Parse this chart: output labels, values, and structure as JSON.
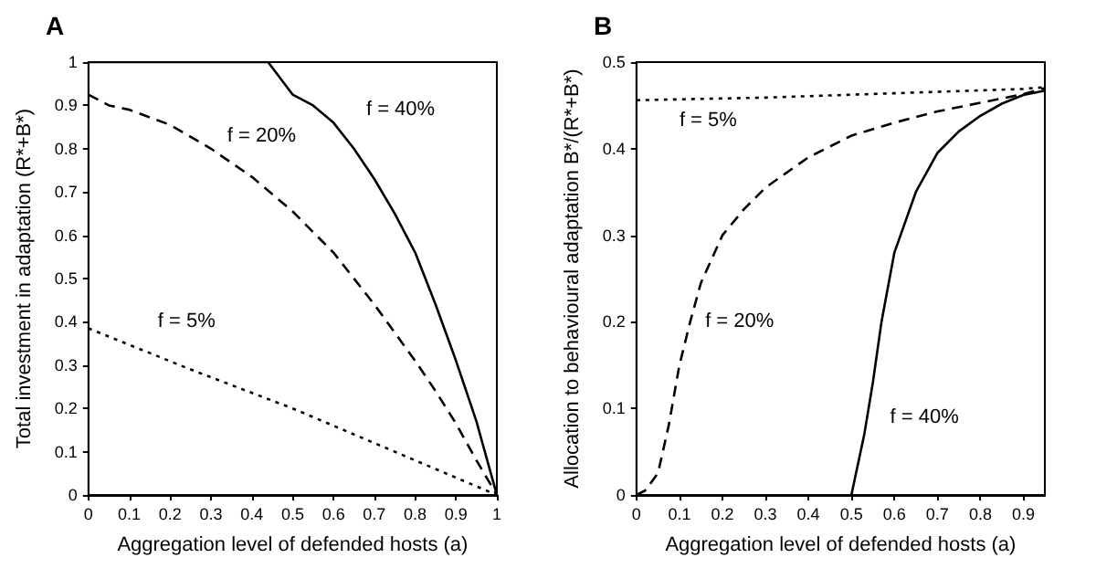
{
  "chart_data": [
    {
      "type": "line",
      "title": "A",
      "xlabel": "Aggregation level of defended hosts (a)",
      "ylabel": "Total investment in adaptation (R*+B*)",
      "xlim": [
        0,
        1
      ],
      "xticks": [
        0,
        0.1,
        0.2,
        0.3,
        0.4,
        0.5,
        0.6,
        0.7,
        0.8,
        0.9,
        1
      ],
      "ylim": [
        0,
        1
      ],
      "yticks": [
        0,
        0.1,
        0.2,
        0.3,
        0.4,
        0.5,
        0.6,
        0.7,
        0.8,
        0.9,
        1
      ],
      "grid": false,
      "legend": false,
      "series": [
        {
          "name": "f = 40%",
          "color": "#000000",
          "line_style": "solid",
          "x": [
            0,
            0.2,
            0.44,
            0.48,
            0.5,
            0.55,
            0.6,
            0.65,
            0.7,
            0.75,
            0.8,
            0.85,
            0.9,
            0.95,
            1
          ],
          "values": [
            1,
            1,
            1,
            0.95,
            0.925,
            0.9,
            0.86,
            0.8,
            0.73,
            0.65,
            0.56,
            0.44,
            0.31,
            0.17,
            0
          ]
        },
        {
          "name": "f = 20%",
          "color": "#000000",
          "line_style": "dashed",
          "x": [
            0,
            0.05,
            0.1,
            0.2,
            0.3,
            0.4,
            0.5,
            0.6,
            0.7,
            0.8,
            0.85,
            0.9,
            0.95,
            1
          ],
          "values": [
            0.925,
            0.9,
            0.89,
            0.855,
            0.8,
            0.735,
            0.655,
            0.56,
            0.44,
            0.31,
            0.24,
            0.165,
            0.08,
            0
          ]
        },
        {
          "name": "f = 5%",
          "color": "#000000",
          "line_style": "dotted",
          "x": [
            0,
            0.25,
            0.5,
            0.75,
            1
          ],
          "values": [
            0.385,
            0.29,
            0.2,
            0.1,
            0
          ]
        }
      ]
    },
    {
      "type": "line",
      "title": "B",
      "xlabel": "Aggregation level of defended hosts (a)",
      "ylabel": "Allocation to behavioural adaptation B*/(R*+B*)",
      "xlim": [
        0,
        0.95
      ],
      "xticks": [
        0,
        0.1,
        0.2,
        0.3,
        0.4,
        0.5,
        0.6,
        0.7,
        0.8,
        0.9
      ],
      "ylim": [
        0,
        0.5
      ],
      "yticks": [
        0,
        0.1,
        0.2,
        0.3,
        0.4,
        0.5
      ],
      "grid": false,
      "legend": false,
      "series": [
        {
          "name": "f = 5%",
          "color": "#000000",
          "line_style": "dotted",
          "x": [
            0,
            0.3,
            0.6,
            0.9,
            0.95
          ],
          "values": [
            0.456,
            0.459,
            0.464,
            0.469,
            0.471
          ]
        },
        {
          "name": "f = 20%",
          "color": "#000000",
          "line_style": "dashed",
          "x": [
            0,
            0.02,
            0.05,
            0.075,
            0.1,
            0.125,
            0.15,
            0.2,
            0.25,
            0.3,
            0.4,
            0.5,
            0.6,
            0.7,
            0.8,
            0.9,
            0.95
          ],
          "values": [
            0,
            0.005,
            0.025,
            0.08,
            0.15,
            0.2,
            0.245,
            0.3,
            0.33,
            0.355,
            0.39,
            0.415,
            0.43,
            0.443,
            0.453,
            0.463,
            0.47
          ]
        },
        {
          "name": "f = 40%",
          "color": "#000000",
          "line_style": "solid",
          "x": [
            0.5,
            0.53,
            0.55,
            0.57,
            0.6,
            0.65,
            0.7,
            0.75,
            0.8,
            0.85,
            0.9,
            0.95
          ],
          "values": [
            0,
            0.07,
            0.13,
            0.2,
            0.28,
            0.35,
            0.395,
            0.42,
            0.438,
            0.452,
            0.462,
            0.467
          ]
        }
      ]
    }
  ]
}
